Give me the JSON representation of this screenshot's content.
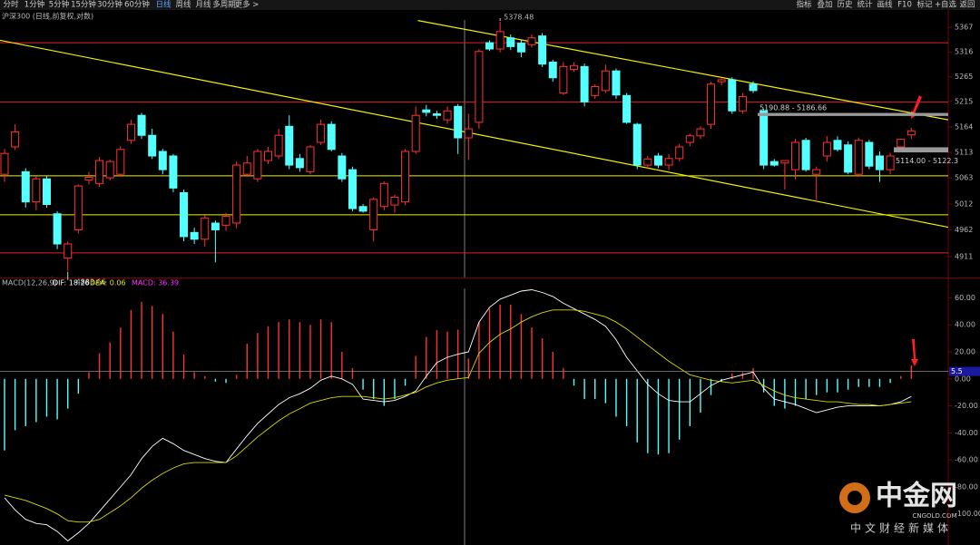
{
  "toolbar": {
    "periods": [
      "分时",
      "1分钟",
      "5分钟",
      "15分钟",
      "30分钟",
      "60分钟",
      "日线",
      "周线",
      "月线",
      "多周期",
      "更多 >"
    ],
    "active_period": 6,
    "tools": [
      "指标",
      "叠加",
      "历史",
      "统计",
      "画线",
      "F10",
      "标记",
      "+自选",
      "返回"
    ]
  },
  "chart_data": [
    {
      "type": "candlestick",
      "title": "沪深300 (日线,前复权,对数)",
      "log_scale": true,
      "mark_extremes": true,
      "up_color": "#ff3232",
      "down_color": "#54ffff",
      "xlim": [
        -0.43,
        89.5
      ],
      "ylim": [
        4873,
        5386
      ],
      "yticks": [
        5367,
        5316,
        5265,
        5215,
        5164,
        5113,
        5063,
        5012,
        4962,
        4911
      ],
      "open": [
        5070,
        5124,
        5075,
        5016,
        5061,
        4993,
        4908,
        4962,
        5059,
        5052,
        5063,
        5070,
        5137,
        5187,
        5147,
        5115,
        5106,
        5034,
        4957,
        4944,
        4975,
        4971,
        4975,
        5070,
        5061,
        5097,
        5106,
        5165,
        5101,
        5075,
        5133,
        5169,
        5106,
        5079,
        5007,
        4962,
        5007,
        5010,
        5016,
        5115,
        5198,
        5190,
        5178,
        5205,
        5142,
        5173,
        5335,
        5322,
        5345,
        5334,
        5331,
        5349,
        5295,
        5232,
        5280,
        5286,
        5227,
        5237,
        5277,
        5227,
        5169,
        5088,
        5106,
        5088,
        5101,
        5133,
        5146,
        5169,
        5255,
        5259,
        5196,
        5250,
        5196,
        5095,
        5092,
        5079,
        5137,
        5070,
        5106,
        5137,
        5128,
        5070,
        5133,
        5106,
        5079,
        5124,
        5148
      ],
      "high": [
        5120,
        5169,
        5082,
        5066,
        5066,
        4998,
        4940,
        5050,
        5075,
        5104,
        5099,
        5125,
        5178,
        5192,
        5160,
        5120,
        5110,
        5040,
        4966,
        4990,
        4980,
        4995,
        5095,
        5106,
        5120,
        5124,
        5160,
        5187,
        5110,
        5128,
        5178,
        5175,
        5112,
        5085,
        5012,
        5025,
        5056,
        5030,
        5120,
        5205,
        5208,
        5196,
        5205,
        5210,
        5190,
        5322,
        5340,
        5378.48,
        5352,
        5340,
        5352,
        5355,
        5300,
        5295,
        5295,
        5292,
        5250,
        5290,
        5282,
        5232,
        5172,
        5106,
        5112,
        5110,
        5130,
        5150,
        5165,
        5255,
        5262,
        5264,
        5232,
        5256,
        5200,
        5100,
        5098,
        5140,
        5142,
        5085,
        5145,
        5145,
        5135,
        5142,
        5138,
        5115,
        5112,
        5140,
        5162
      ],
      "low": [
        5055,
        5118,
        5005,
        5000,
        5005,
        4925,
        4883.66,
        4955,
        5050,
        5045,
        5058,
        5065,
        5130,
        5140,
        5100,
        5070,
        5035,
        4940,
        4935,
        4930,
        4900,
        4960,
        4965,
        5065,
        5055,
        5090,
        5100,
        5080,
        5075,
        5070,
        5128,
        5115,
        5055,
        4998,
        4995,
        4940,
        5000,
        4995,
        5010,
        5110,
        5185,
        5180,
        5170,
        5110,
        5098,
        5160,
        5318,
        5315,
        5320,
        5305,
        5325,
        5285,
        5255,
        5228,
        5275,
        5205,
        5220,
        5232,
        5220,
        5170,
        5080,
        5080,
        5082,
        5078,
        5095,
        5125,
        5140,
        5160,
        5248,
        5190,
        5190,
        5232,
        5080,
        5085,
        5040,
        5060,
        5075,
        5020,
        5095,
        5115,
        5070,
        5065,
        5080,
        5055,
        5070,
        5115,
        5140
      ],
      "close": [
        5111,
        5154,
        5016,
        5061,
        5011,
        4935,
        4935,
        5047,
        5064,
        5097,
        5095,
        5119,
        5169,
        5147,
        5106,
        5079,
        5043,
        4949,
        4944,
        4985,
        4962,
        4988,
        5088,
        5092,
        5115,
        5115,
        5147,
        5088,
        5083,
        5124,
        5169,
        5119,
        5061,
        5003,
        4998,
        5021,
        5052,
        5025,
        5115,
        5187,
        5193,
        5187,
        5196,
        5142,
        5160,
        5317,
        5322,
        5358,
        5327,
        5316,
        5345,
        5291,
        5263,
        5286,
        5288,
        5214,
        5245,
        5277,
        5228,
        5173,
        5088,
        5100,
        5088,
        5101,
        5124,
        5146,
        5160,
        5250,
        5259,
        5196,
        5225,
        5237,
        5088,
        5088,
        5097,
        5133,
        5079,
        5079,
        5133,
        5119,
        5074,
        5137,
        5086,
        5079,
        5106,
        5139,
        5156
      ],
      "hlines": [
        {
          "value": 5335,
          "color": "#e0202a"
        },
        {
          "value": 5214,
          "color": "#e0202a"
        },
        {
          "value": 5067,
          "color": "#f0f000"
        },
        {
          "value": 4991,
          "color": "#f0f000"
        },
        {
          "value": 4918,
          "color": "#e0202a"
        }
      ],
      "trendlines": [
        {
          "from": [
            -0.43,
            5340
          ],
          "to": [
            89.5,
            4967
          ],
          "color": "#f0f000"
        },
        {
          "from": [
            39.2,
            5381
          ],
          "to": [
            89.5,
            5178
          ],
          "color": "#f0f000"
        }
      ],
      "range_marks": [
        {
          "label": "5190.88 - 5186.66",
          "high": 5190.88,
          "low": 5186.66
        },
        {
          "label": "5114.00 - 5122.3",
          "high": 5122.3,
          "low": 5114
        }
      ]
    },
    {
      "type": "macd",
      "title": "MACD(12,26,9)",
      "readouts": [
        {
          "text": "DIF: 18.26",
          "color": "#ffffff"
        },
        {
          "text": "DEA: 0.06",
          "color": "#e8e800"
        },
        {
          "text": "MACD: 36.39",
          "color": "#ff33ff"
        }
      ],
      "xlim": [
        -0.43,
        89.5
      ],
      "ylim": [
        -123,
        67
      ],
      "yticks": [
        {
          "value": 60,
          "label": "60.00"
        },
        {
          "value": 40,
          "label": "40.00"
        },
        {
          "value": 20,
          "label": "20.00"
        },
        {
          "value": 0,
          "label": "0.00"
        },
        {
          "value": -20,
          "label": "-20.00"
        },
        {
          "value": -40,
          "label": "-40.00"
        },
        {
          "value": -60,
          "label": "-60.00"
        },
        {
          "value": -80,
          "label": "-80.00"
        },
        {
          "value": -100,
          "label": "-100.00"
        }
      ],
      "cursor_value": 5.5,
      "series": [
        {
          "name": "MACD",
          "kind": "histogram",
          "up_color": "#ff3232",
          "down_color": "#54ffff",
          "values": [
            -53,
            -38,
            -35,
            -32,
            -28,
            -30,
            -22,
            -11,
            5,
            19,
            27,
            38,
            51,
            57,
            54,
            48,
            35,
            18,
            5,
            2,
            -2,
            -3,
            3,
            26,
            34,
            39,
            42,
            44,
            42,
            40,
            44,
            42,
            20,
            8,
            -8,
            -15,
            -20,
            -15,
            -5,
            17,
            31,
            36,
            35,
            36.39,
            15,
            42,
            52,
            55,
            55,
            48,
            38,
            30,
            20,
            8,
            -5,
            -15,
            -15,
            -18,
            -28,
            -35,
            -47,
            -55,
            -56,
            -55,
            -45,
            -35,
            -25,
            -12,
            -2,
            4,
            5,
            8,
            -10,
            -20,
            -22,
            -20,
            -15,
            -12,
            -10,
            -10,
            -8,
            -6,
            -6,
            -6,
            -3,
            2,
            10
          ]
        },
        {
          "name": "DIF",
          "kind": "line",
          "color": "#ffffff",
          "values": [
            -88,
            -97,
            -104,
            -107,
            -108,
            -113,
            -120,
            -114,
            -107,
            -98,
            -89,
            -80,
            -71,
            -59,
            -50,
            -44,
            -48,
            -53,
            -56,
            -59,
            -61,
            -62,
            -52,
            -42,
            -33,
            -26,
            -19,
            -14,
            -11,
            -7,
            -1,
            2,
            0,
            -4,
            -15,
            -16,
            -17,
            -16,
            -13,
            -9,
            2,
            12,
            16,
            18.26,
            20,
            42,
            53,
            59,
            62,
            65,
            66,
            64,
            61,
            56,
            52,
            48,
            44,
            39,
            29,
            16,
            6,
            -4,
            -11,
            -16,
            -17,
            -17,
            -11,
            -5,
            -1,
            1,
            3,
            5,
            -7,
            -15,
            -17,
            -19,
            -22,
            -25,
            -23,
            -21,
            -20,
            -20,
            -20,
            -20,
            -19,
            -17,
            -13
          ]
        },
        {
          "name": "DEA",
          "kind": "line",
          "color": "#d8d800",
          "values": [
            -86,
            -88,
            -90,
            -93,
            -96,
            -100,
            -105,
            -106,
            -106,
            -104,
            -99,
            -94,
            -88,
            -81,
            -75,
            -70,
            -66,
            -63,
            -62,
            -62,
            -62,
            -62,
            -57,
            -50,
            -43,
            -37,
            -31,
            -26,
            -22,
            -18,
            -16,
            -14,
            -13,
            -13,
            -13,
            -14,
            -15,
            -14,
            -12,
            -10,
            -6,
            -3,
            -1,
            0.06,
            1,
            19,
            27,
            33,
            37,
            42,
            46,
            49,
            51,
            51,
            51,
            50,
            48,
            46,
            42,
            37,
            31,
            25,
            19,
            13,
            8,
            3,
            1,
            -1,
            -2,
            -3,
            -2,
            -1,
            -5,
            -9,
            -12,
            -14,
            -15,
            -16,
            -17,
            -17,
            -18,
            -19,
            -19,
            -20,
            -19,
            -18,
            -17
          ]
        }
      ]
    }
  ],
  "watermark": {
    "brand": "中金网",
    "url": "CNGOLD.COM",
    "slogan": "中文财经新媒体"
  }
}
